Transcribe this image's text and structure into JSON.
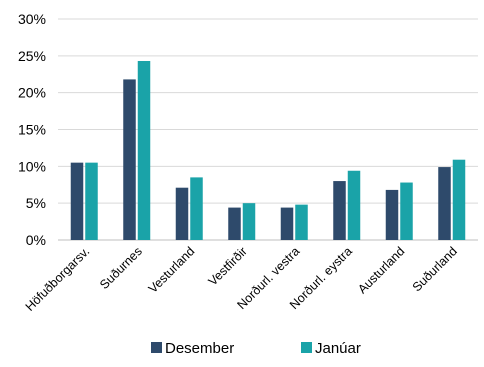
{
  "chart_data": {
    "type": "bar",
    "title": "",
    "xlabel": "",
    "ylabel": "",
    "ylim": [
      0,
      30
    ],
    "yticks": [
      "0%",
      "5%",
      "10%",
      "15%",
      "20%",
      "25%",
      "30%"
    ],
    "grid": true,
    "legend_position": "bottom",
    "categories": [
      "Höfuðborgarsv.",
      "Suðurnes",
      "Vesturland",
      "Vestfirðir",
      "Norðurl. vestra",
      "Norðurl. eystra",
      "Austurland",
      "Suðurland"
    ],
    "series": [
      {
        "name": "Desember",
        "color": "#2e4a6b",
        "values": [
          10.5,
          21.8,
          7.1,
          4.4,
          4.4,
          8.0,
          6.8,
          9.9
        ]
      },
      {
        "name": "Janúar",
        "color": "#1aa3a8",
        "values": [
          10.5,
          24.3,
          8.5,
          5.0,
          4.8,
          9.4,
          7.8,
          10.9
        ]
      }
    ]
  }
}
